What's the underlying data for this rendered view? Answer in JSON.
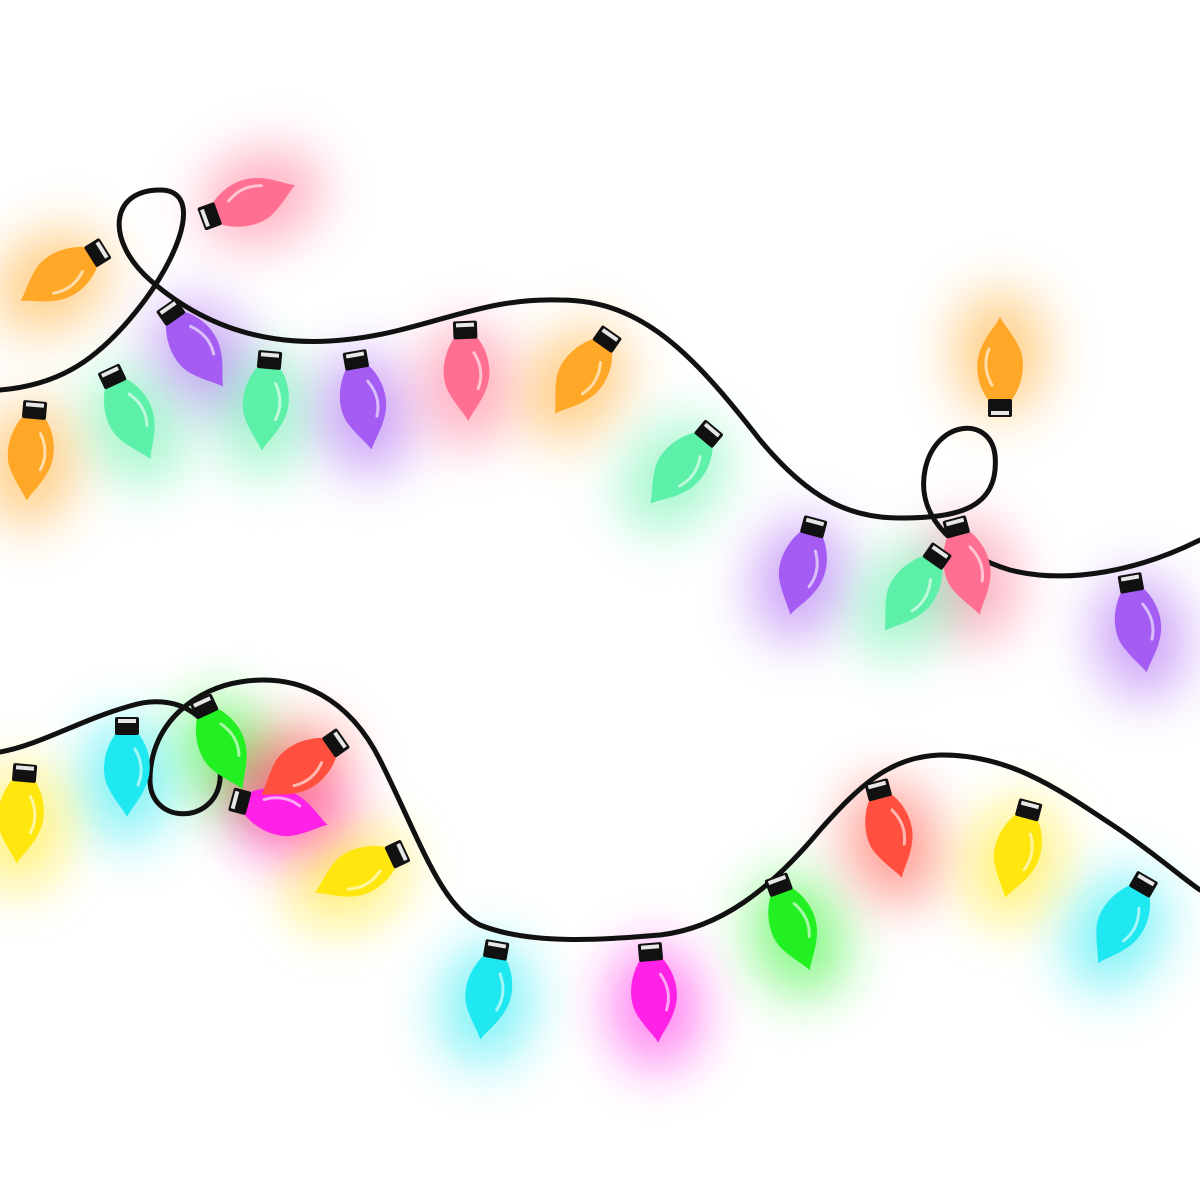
{
  "scene": {
    "subject": "string-lights",
    "background": "#ffffff",
    "wire_color": "#111111",
    "socket_color": "#111111"
  },
  "palette": {
    "orange": "#FFA726",
    "pink": "#FF6F91",
    "purple": "#A45CF2",
    "mint": "#5CF0A8",
    "yellow": "#FFE60F",
    "cyan": "#1FE8F0",
    "green": "#22F022",
    "red": "#FF4F3E",
    "magenta": "#FF22E6"
  },
  "strands": [
    {
      "name": "upper-strand",
      "bulbs": [
        "pink",
        "orange",
        "purple",
        "mint",
        "orange",
        "mint",
        "purple",
        "pink",
        "orange",
        "mint",
        "purple",
        "orange",
        "pink",
        "mint",
        "purple"
      ]
    },
    {
      "name": "lower-strand",
      "bulbs": [
        "green",
        "cyan",
        "yellow",
        "magenta",
        "red",
        "yellow",
        "cyan",
        "magenta",
        "green",
        "red",
        "yellow",
        "cyan"
      ]
    }
  ]
}
